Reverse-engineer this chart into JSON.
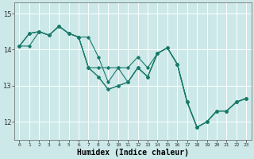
{
  "xlabel": "Humidex (Indice chaleur)",
  "background_color": "#cce8e8",
  "grid_color": "#ffffff",
  "line_color": "#1a7a6a",
  "xlim": [
    -0.5,
    23.5
  ],
  "ylim": [
    11.5,
    15.3
  ],
  "yticks": [
    12,
    13,
    14,
    15
  ],
  "xticks": [
    0,
    1,
    2,
    3,
    4,
    5,
    6,
    7,
    8,
    9,
    10,
    11,
    12,
    13,
    14,
    15,
    16,
    17,
    18,
    19,
    20,
    21,
    22,
    23
  ],
  "line1": [
    14.1,
    14.45,
    14.5,
    14.4,
    14.65,
    14.45,
    14.35,
    13.5,
    13.25,
    12.9,
    13.0,
    13.1,
    13.5,
    13.25,
    13.9,
    14.05,
    13.6,
    12.55,
    11.85,
    12.0,
    12.3,
    12.3,
    12.55,
    12.65
  ],
  "line2": [
    14.1,
    14.1,
    14.5,
    14.4,
    14.65,
    14.45,
    14.35,
    13.5,
    13.5,
    13.5,
    13.5,
    13.1,
    13.5,
    13.25,
    13.9,
    14.05,
    13.6,
    12.55,
    11.85,
    12.0,
    12.3,
    12.3,
    12.55,
    12.65
  ],
  "line3": [
    14.1,
    14.45,
    14.5,
    14.4,
    14.65,
    14.45,
    14.35,
    14.35,
    13.8,
    13.1,
    13.5,
    13.5,
    13.8,
    13.5,
    13.9,
    14.05,
    13.6,
    12.55,
    11.85,
    12.0,
    12.3,
    12.3,
    12.55,
    12.65
  ],
  "line4": [
    14.1,
    14.45,
    14.5,
    14.4,
    14.65,
    14.45,
    14.35,
    13.5,
    13.25,
    12.9,
    13.0,
    13.1,
    13.5,
    13.25,
    13.9,
    14.05,
    13.6,
    12.55,
    11.85,
    12.0,
    12.3,
    12.3,
    12.55,
    12.65
  ]
}
